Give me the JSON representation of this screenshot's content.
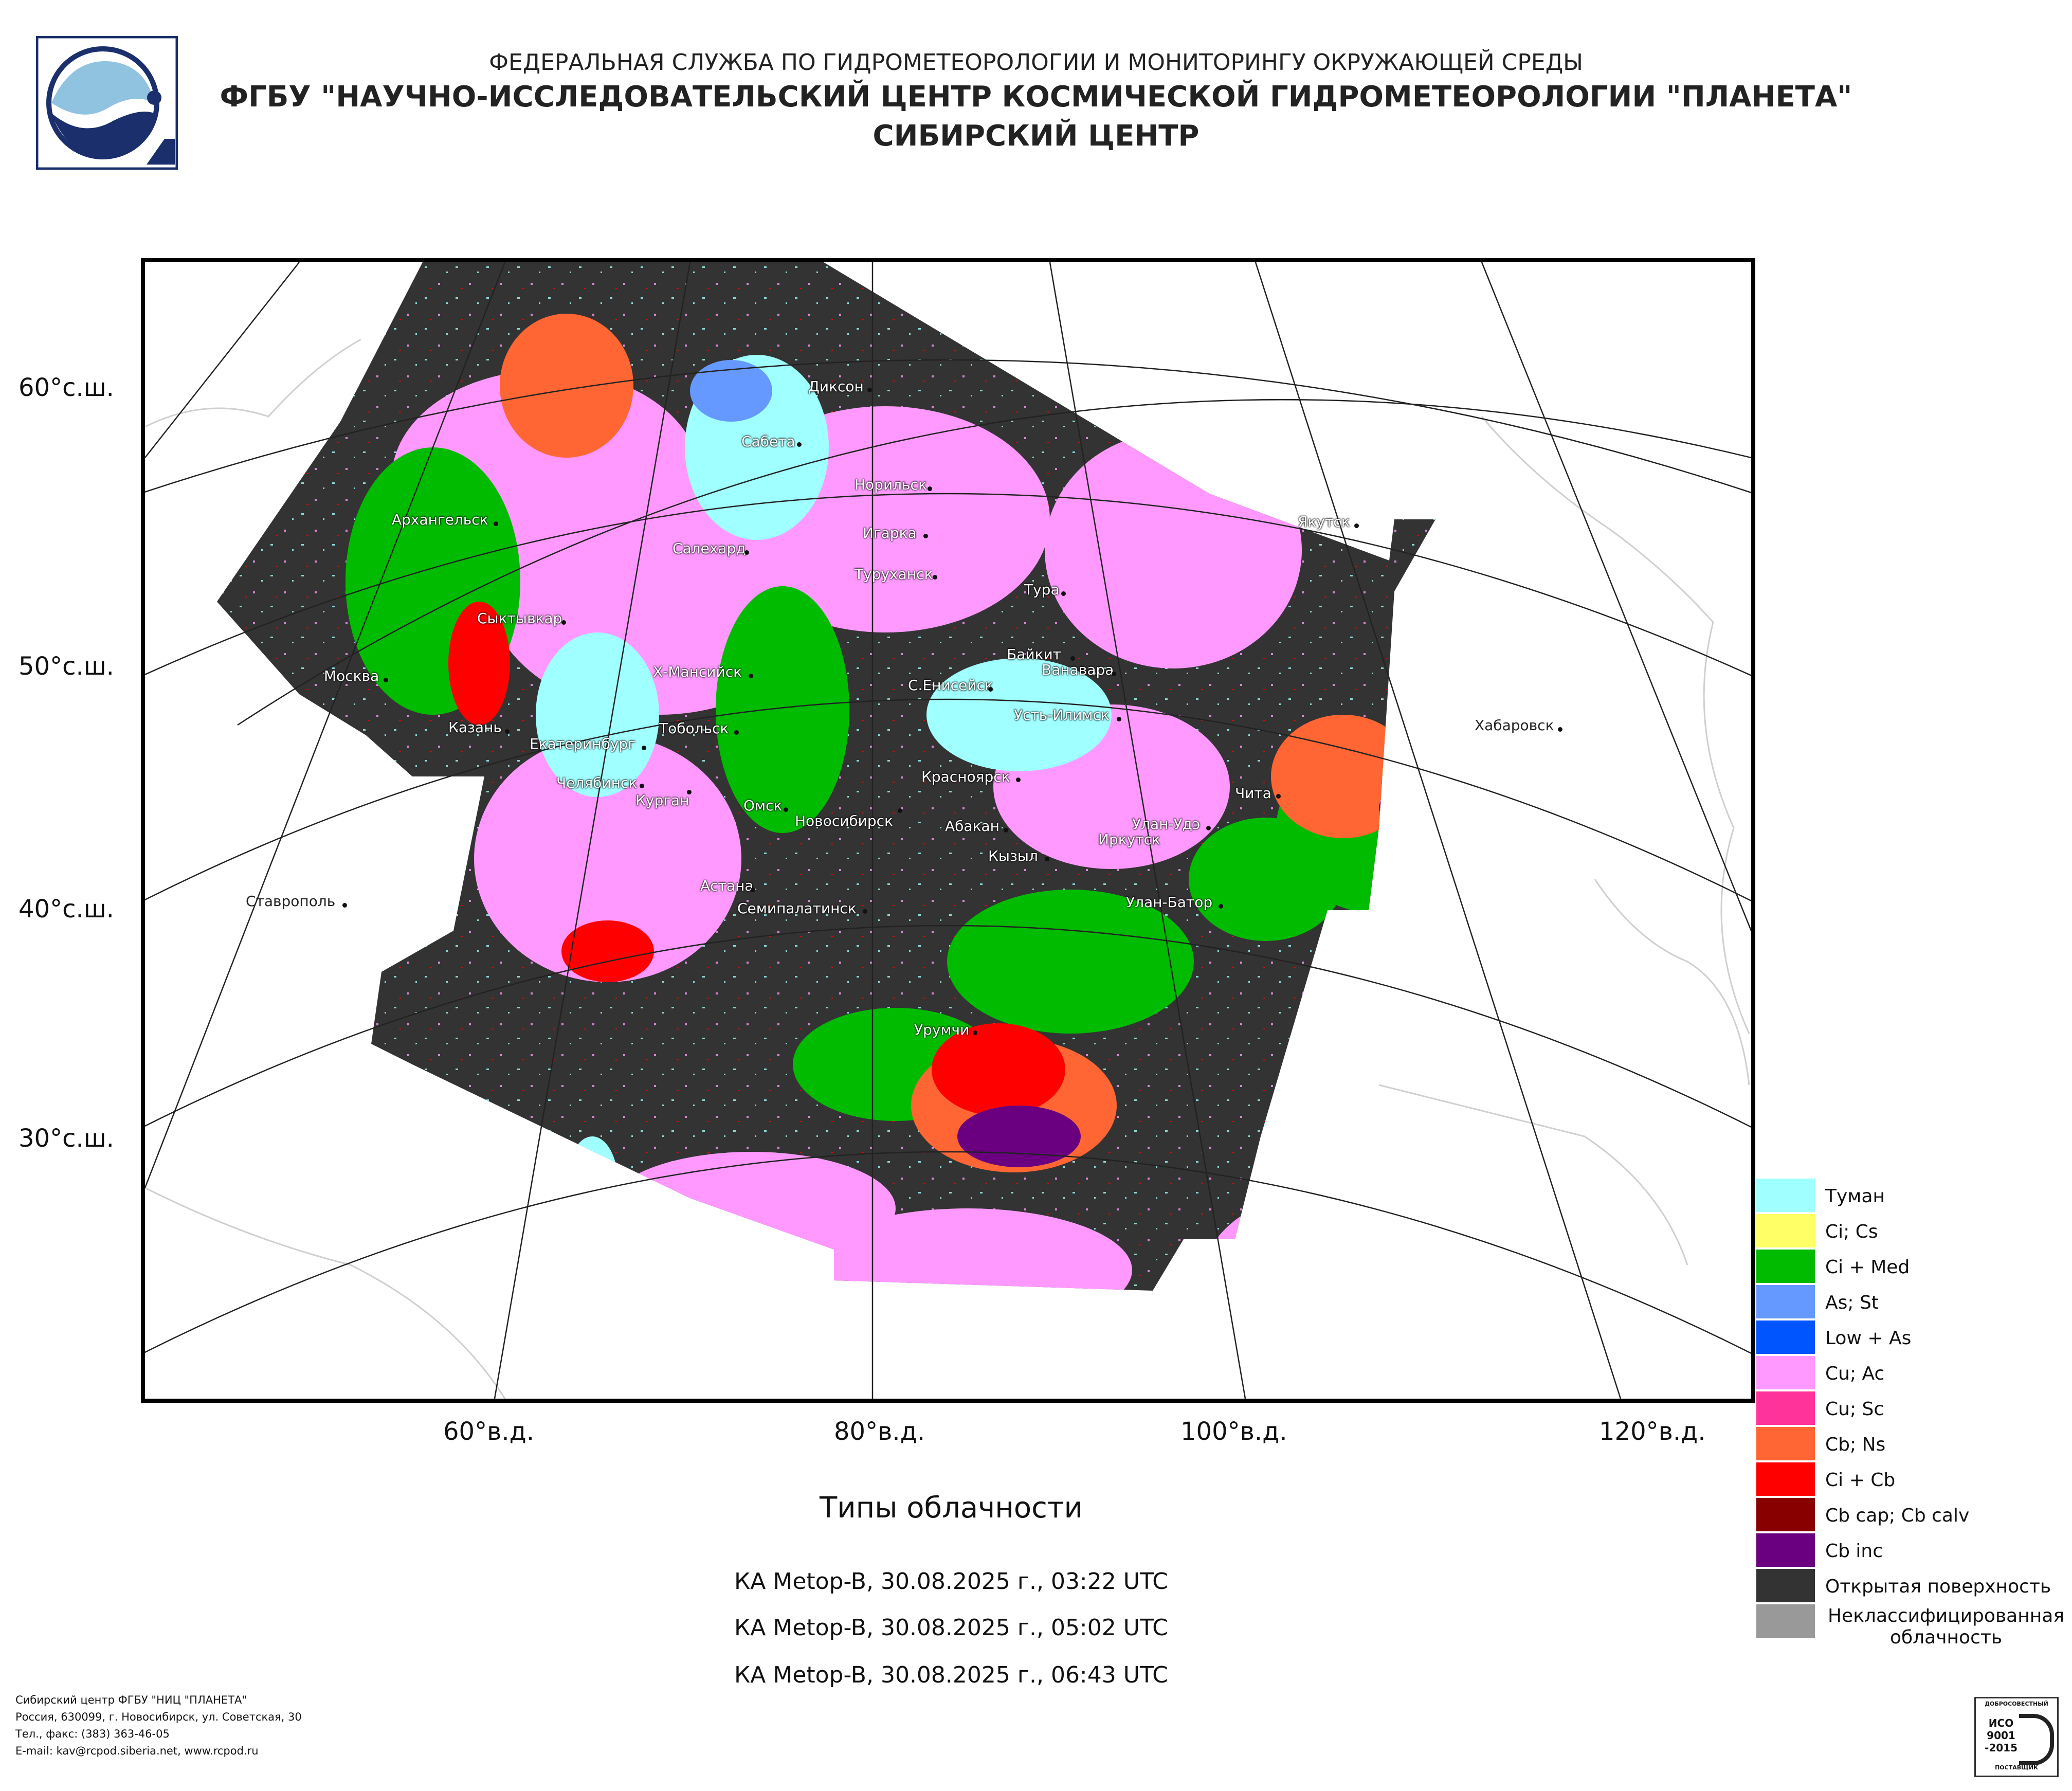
{
  "header": {
    "line1": "ФЕДЕРАЛЬНАЯ СЛУЖБА ПО ГИДРОМЕТЕОРОЛОГИИ И МОНИТОРИНГУ ОКРУЖАЮЩЕЙ СРЕДЫ",
    "line2": "ФГБУ \"НАУЧНО-ИССЛЕДОВАТЕЛЬСКИЙ ЦЕНТР КОСМИЧЕСКОЙ ГИДРОМЕТЕОРОЛОГИИ \"ПЛАНЕТА\"",
    "line3": "СИБИРСКИЙ ЦЕНТР"
  },
  "map": {
    "lat_labels": [
      "60°с.ш.",
      "50°с.ш.",
      "40°с.ш.",
      "30°с.ш."
    ],
    "lon_labels": [
      "60°в.д.",
      "80°в.д.",
      "100°в.д.",
      "120°в.д."
    ],
    "cities": [
      {
        "name": "Диксон"
      },
      {
        "name": "Сабета"
      },
      {
        "name": "Норильск"
      },
      {
        "name": "Игарка"
      },
      {
        "name": "Салехард"
      },
      {
        "name": "Туруханск"
      },
      {
        "name": "Тура"
      },
      {
        "name": "Якутск"
      },
      {
        "name": "Архангельск"
      },
      {
        "name": "Сыктывкар"
      },
      {
        "name": "Москва"
      },
      {
        "name": "Х-Мансийск"
      },
      {
        "name": "Байкит"
      },
      {
        "name": "Ванавара"
      },
      {
        "name": "С.Енисейск"
      },
      {
        "name": "Усть-Илимск"
      },
      {
        "name": "Казань"
      },
      {
        "name": "Екатеринбург"
      },
      {
        "name": "Тобольск"
      },
      {
        "name": "Хабаровск"
      },
      {
        "name": "Красноярск"
      },
      {
        "name": "Челябинск"
      },
      {
        "name": "Курган"
      },
      {
        "name": "Омск"
      },
      {
        "name": "Новосибирск"
      },
      {
        "name": "Чита"
      },
      {
        "name": "Абакан"
      },
      {
        "name": "Улан-Удэ"
      },
      {
        "name": "Иркутск"
      },
      {
        "name": "Кызыл"
      },
      {
        "name": "Астана"
      },
      {
        "name": "Ставрополь"
      },
      {
        "name": "Семипалатинск"
      },
      {
        "name": "Улан-Батор"
      },
      {
        "name": "Урумчи"
      }
    ]
  },
  "caption": "Типы облачности",
  "passes": [
    "КА Metop-B, 30.08.2025 г., 03:22 UTC",
    "КА Metop-B, 30.08.2025 г., 05:02 UTC",
    "КА Metop-B, 30.08.2025 г., 06:43 UTC"
  ],
  "legend": [
    {
      "label": "Туман",
      "color": "#a0ffff"
    },
    {
      "label": "Ci; Cs",
      "color": "#ffff66"
    },
    {
      "label": "Ci + Med",
      "color": "#00bb00"
    },
    {
      "label": "As; St",
      "color": "#6699ff"
    },
    {
      "label": "Low + As",
      "color": "#0055ff"
    },
    {
      "label": "Cu; Ac",
      "color": "#ff99ff"
    },
    {
      "label": "Cu; Sc",
      "color": "#ff3399"
    },
    {
      "label": "Cb; Ns",
      "color": "#ff6633"
    },
    {
      "label": "Ci + Cb",
      "color": "#ff0000"
    },
    {
      "label": "Cb cap; Cb calv",
      "color": "#880000"
    },
    {
      "label": "Cb inc",
      "color": "#6a0080"
    },
    {
      "label": "Открытая поверхность",
      "color": "#333333"
    },
    {
      "label": "Неклассифицированная облачность",
      "color": "#999999"
    }
  ],
  "footer": {
    "line1": "Сибирский центр ФГБУ \"НИЦ \"ПЛАНЕТА\"",
    "line2": "Россия, 630099, г. Новосибирск, ул. Советская, 30",
    "line3": "Тел., факс: (383) 363-46-05",
    "line4": "E-mail: kav@rcpod.siberia.net, www.rcpod.ru"
  },
  "cert": {
    "top": "ДОБРОСОВЕСТНЫЙ",
    "mid1": "ИСО",
    "mid2": "9001",
    "mid3": "-2015",
    "bottom": "ПОСТАВЩИК"
  }
}
